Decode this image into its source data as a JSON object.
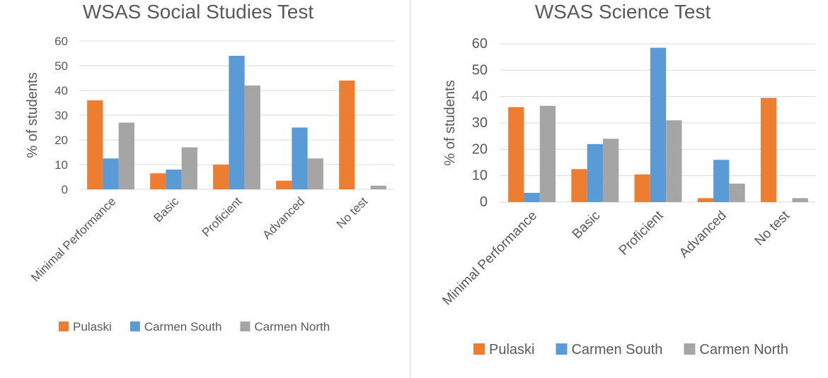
{
  "colors": {
    "Pulaski": "#ED7D31",
    "Carmen South": "#5B9BD5",
    "Carmen North": "#A5A5A5"
  },
  "chart_data": [
    {
      "type": "bar",
      "title": "WSAS Social Studies Test",
      "xlabel": "",
      "ylabel": "% of students",
      "ylim": [
        0,
        60
      ],
      "yticks": [
        0,
        10,
        20,
        30,
        40,
        50,
        60
      ],
      "grid": true,
      "legend": "bottom",
      "categories": [
        "Minimal Performance",
        "Basic",
        "Proficient",
        "Advanced",
        "No test"
      ],
      "series": [
        {
          "name": "Pulaski",
          "values": [
            36,
            6.5,
            10,
            3.5,
            44
          ]
        },
        {
          "name": "Carmen South",
          "values": [
            12.5,
            8,
            54,
            25,
            0
          ]
        },
        {
          "name": "Carmen North",
          "values": [
            27,
            17,
            42,
            12.5,
            1.5
          ]
        }
      ]
    },
    {
      "type": "bar",
      "title": "WSAS Science Test",
      "xlabel": "",
      "ylabel": "% of students",
      "ylim": [
        0,
        60
      ],
      "yticks": [
        0,
        10,
        20,
        30,
        40,
        50,
        60
      ],
      "grid": true,
      "legend": "bottom",
      "categories": [
        "Minimal Performance",
        "Basic",
        "Proficient",
        "Advanced",
        "No test"
      ],
      "series": [
        {
          "name": "Pulaski",
          "values": [
            36,
            12.5,
            10.5,
            1.5,
            39.5
          ]
        },
        {
          "name": "Carmen South",
          "values": [
            3.5,
            22,
            58.5,
            16,
            0
          ]
        },
        {
          "name": "Carmen North",
          "values": [
            36.5,
            24,
            31,
            7,
            1.5
          ]
        }
      ]
    }
  ]
}
